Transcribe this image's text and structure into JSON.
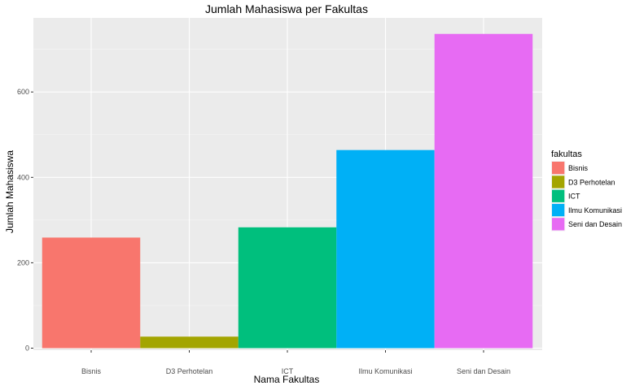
{
  "chart_data": {
    "type": "bar",
    "title": "Jumlah Mahasiswa per Fakultas",
    "xlabel": "Nama Fakultas",
    "ylabel": "Jumlah Mahasiswa",
    "categories": [
      "Bisnis",
      "D3 Perhotelan",
      "ICT",
      "Ilmu Komunikasi",
      "Seni dan Desain"
    ],
    "values": [
      259,
      27,
      283,
      464,
      736
    ],
    "colors": [
      "#F8766D",
      "#A3A500",
      "#00BF7D",
      "#00B0F6",
      "#E76BF3"
    ],
    "yticks": [
      0,
      200,
      400,
      600
    ],
    "ylim": [
      0,
      736
    ],
    "grid": true,
    "legend": {
      "title": "fakultas",
      "placement": "right",
      "items": [
        "Bisnis",
        "D3 Perhotelan",
        "ICT",
        "Ilmu Komunikasi",
        "Seni dan Desain"
      ]
    }
  }
}
